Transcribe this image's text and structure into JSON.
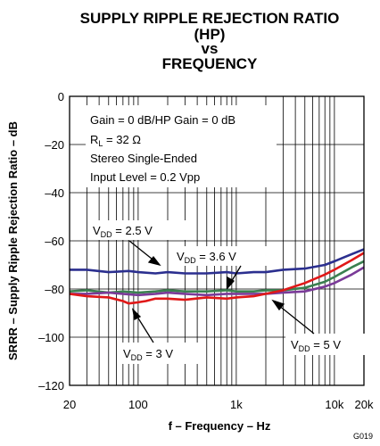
{
  "chart_data": {
    "type": "line",
    "title": [
      "SUPPLY RIPPLE REJECTION RATIO",
      "(HP)",
      "vs",
      "FREQUENCY"
    ],
    "xlabel": "f – Frequency – Hz",
    "ylabel": "SRRR – Supply Ripple Rejection Ratio – dB",
    "xscale": "log",
    "xlim": [
      20,
      20000
    ],
    "ylim": [
      -120,
      0
    ],
    "xticks": [
      {
        "value": 20,
        "label": "20"
      },
      {
        "value": 100,
        "label": "100"
      },
      {
        "value": 1000,
        "label": "1k"
      },
      {
        "value": 10000,
        "label": "10k"
      },
      {
        "value": 20000,
        "label": "20k"
      }
    ],
    "yticks": [
      {
        "value": 0,
        "label": "0"
      },
      {
        "value": -20,
        "label": "–20"
      },
      {
        "value": -40,
        "label": "–40"
      },
      {
        "value": -60,
        "label": "–60"
      },
      {
        "value": -80,
        "label": "–80"
      },
      {
        "value": -100,
        "label": "–100"
      },
      {
        "value": -120,
        "label": "–120"
      }
    ],
    "grid": true,
    "conditions": [
      "Gain = 0 dB/HP Gain = 0 dB",
      {
        "main": "R",
        "sub": "L",
        "rest": " = 32 Ω"
      },
      "Stereo Single-Ended",
      "Input Level = 0.2 Vpp"
    ],
    "series": [
      {
        "name": "V_DD = 2.5 V",
        "color": "#2b2f8f",
        "x": [
          20,
          30,
          50,
          80,
          100,
          150,
          200,
          300,
          500,
          800,
          1000,
          1500,
          2000,
          3000,
          5000,
          8000,
          10000,
          15000,
          20000
        ],
        "y": [
          -72,
          -72,
          -73,
          -72.5,
          -73,
          -73.5,
          -73,
          -73.5,
          -73.5,
          -73,
          -73.5,
          -73,
          -73,
          -72,
          -71.5,
          -70,
          -68.5,
          -65.5,
          -63.5
        ]
      },
      {
        "name": "V_DD = 3.6 V",
        "color": "#3a8050",
        "x": [
          20,
          30,
          50,
          70,
          100,
          150,
          200,
          300,
          500,
          800,
          1000,
          1500,
          2000,
          3000,
          5000,
          8000,
          10000,
          15000,
          20000
        ],
        "y": [
          -81,
          -80.5,
          -81.5,
          -81,
          -81.5,
          -81,
          -80.5,
          -81,
          -81,
          -80.5,
          -81,
          -81,
          -80.5,
          -80.5,
          -79.5,
          -77,
          -75,
          -71,
          -68.5
        ]
      },
      {
        "name": "V_DD = 5 V",
        "color": "#7a3a98",
        "x": [
          20,
          30,
          50,
          70,
          100,
          150,
          200,
          300,
          500,
          800,
          1000,
          1500,
          2000,
          3000,
          5000,
          8000,
          10000,
          15000,
          20000
        ],
        "y": [
          -82,
          -82,
          -81.5,
          -82,
          -82.5,
          -82,
          -81.5,
          -82,
          -82.5,
          -82,
          -82,
          -82,
          -82,
          -81.5,
          -81,
          -79,
          -77.5,
          -74,
          -71
        ]
      },
      {
        "name": "V_DD = 3 V",
        "color": "#e01818",
        "x": [
          20,
          30,
          50,
          70,
          80,
          100,
          120,
          150,
          200,
          300,
          500,
          800,
          1000,
          1500,
          2000,
          3000,
          5000,
          8000,
          10000,
          15000,
          20000
        ],
        "y": [
          -82,
          -83,
          -83.5,
          -85,
          -86,
          -85.5,
          -85,
          -84,
          -84,
          -84.5,
          -83.5,
          -84,
          -83.5,
          -83,
          -82,
          -80.5,
          -77.5,
          -74,
          -72,
          -68,
          -65
        ]
      }
    ],
    "series_labels": [
      {
        "main": "V",
        "sub": "DD",
        "rest": " = 2.5 V"
      },
      {
        "main": "V",
        "sub": "DD",
        "rest": " = 3.6 V"
      },
      {
        "main": "V",
        "sub": "DD",
        "rest": " = 3 V"
      },
      {
        "main": "V",
        "sub": "DD",
        "rest": " = 5 V"
      }
    ],
    "figure_id": "G019"
  }
}
